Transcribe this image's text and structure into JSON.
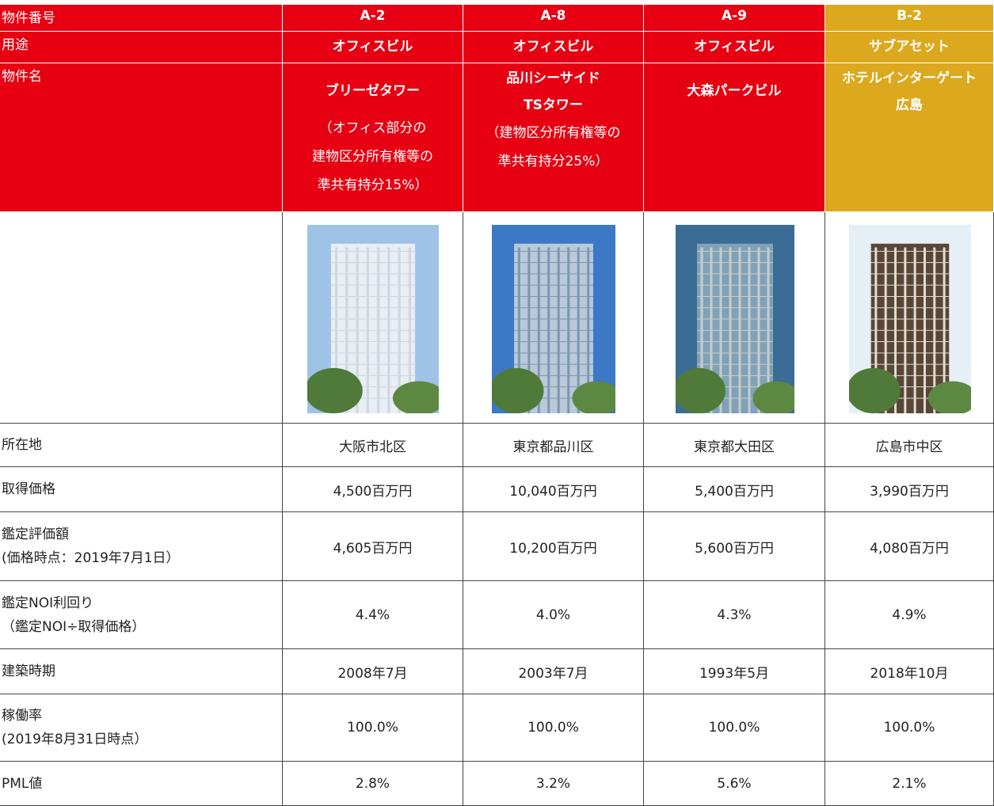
{
  "table": {
    "header_rows": [
      {
        "label": "物件番号",
        "cells": [
          "A-2",
          "A-8",
          "A-9",
          "B-2"
        ]
      },
      {
        "label": "用途",
        "cells": [
          "オフィスビル",
          "オフィスビル",
          "オフィスビル",
          "サブアセット"
        ]
      },
      {
        "label": "物件名",
        "cells": [
          {
            "name": [
              "ブリーゼタワー"
            ],
            "note": [
              "（オフィス部分の",
              "建物区分所有権等の",
              "準共有持分15%）"
            ]
          },
          {
            "name": [
              "品川シーサイド",
              "TSタワー"
            ],
            "note": [
              "（建物区分所有権等の",
              "準共有持分25%）"
            ]
          },
          {
            "name": [
              "大森パークビル"
            ],
            "note": []
          },
          {
            "name": [
              "ホテルインターゲート",
              "広島"
            ],
            "note": []
          }
        ]
      }
    ],
    "body_rows": [
      {
        "label": [
          "所在地"
        ],
        "cells": [
          "大阪市北区",
          "東京都品川区",
          "東京都大田区",
          "広島市中区"
        ]
      },
      {
        "label": [
          "取得価格"
        ],
        "cells": [
          "4,500百万円",
          "10,040百万円",
          "5,400百万円",
          "3,990百万円"
        ]
      },
      {
        "label": [
          "鑑定評価額",
          "(価格時点：2019年7月1日）"
        ],
        "cells": [
          "4,605百万円",
          "10,200百万円",
          "5,600百万円",
          "4,080百万円"
        ]
      },
      {
        "label": [
          "鑑定NOI利回り",
          "（鑑定NOI÷取得価格）"
        ],
        "cells": [
          "4.4%",
          "4.0%",
          "4.3%",
          "4.9%"
        ]
      },
      {
        "label": [
          "建築時期"
        ],
        "cells": [
          "2008年7月",
          "2003年7月",
          "1993年5月",
          "2018年10月"
        ]
      },
      {
        "label": [
          "稼働率",
          "(2019年8月31日時点）"
        ],
        "cells": [
          "100.0%",
          "100.0%",
          "100.0%",
          "100.0%"
        ]
      },
      {
        "label": [
          "PML値"
        ],
        "cells": [
          "2.8%",
          "3.2%",
          "5.6%",
          "2.1%"
        ]
      }
    ]
  }
}
